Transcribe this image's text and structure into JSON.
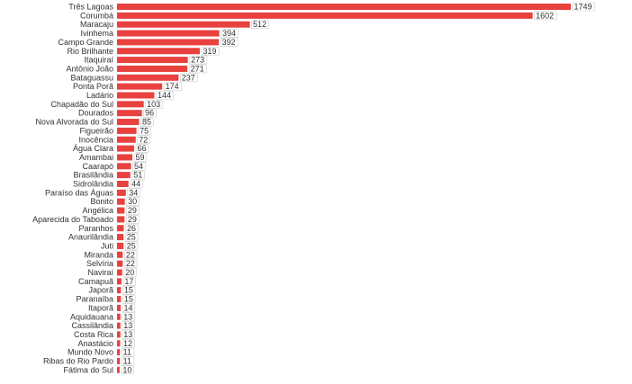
{
  "colors": {
    "bar": "#e8413e",
    "text": "#333333",
    "label_border": "#cccccc"
  },
  "chart_data": {
    "type": "bar",
    "orientation": "horizontal",
    "title": "",
    "xlabel": "",
    "ylabel": "",
    "grid": false,
    "legend": "none",
    "xlim": [
      0,
      1749
    ],
    "categories": [
      "Três Lagoas",
      "Corumbá",
      "Maracaju",
      "Ivinhema",
      "Campo Grande",
      "Rio Brilhante",
      "Itaquiraí",
      "Antônio João",
      "Bataguassu",
      "Ponta Porã",
      "Ladário",
      "Chapadão do Sul",
      "Dourados",
      "Nova Alvorada do Sul",
      "Figueirão",
      "Inocência",
      "Água Clara",
      "Amambai",
      "Caarapó",
      "Brasilândia",
      "Sidrolândia",
      "Paraíso das Águas",
      "Bonito",
      "Angélica",
      "Aparecida do Taboado",
      "Paranhos",
      "Anaurilândia",
      "Juti",
      "Miranda",
      "Selvíria",
      "Naviraí",
      "Camapuã",
      "Japorã",
      "Paranaíba",
      "Itaporã",
      "Aquidauana",
      "Cassilândia",
      "Costa Rica",
      "Anastácio",
      "Mundo Novo",
      "Ribas do Rio Pardo",
      "Fátima do Sul"
    ],
    "values": [
      1749,
      1602,
      512,
      394,
      392,
      319,
      273,
      271,
      237,
      174,
      144,
      103,
      96,
      85,
      75,
      72,
      66,
      59,
      54,
      51,
      44,
      34,
      30,
      29,
      29,
      26,
      25,
      25,
      22,
      22,
      20,
      17,
      15,
      15,
      14,
      13,
      13,
      13,
      12,
      11,
      11,
      10
    ]
  }
}
